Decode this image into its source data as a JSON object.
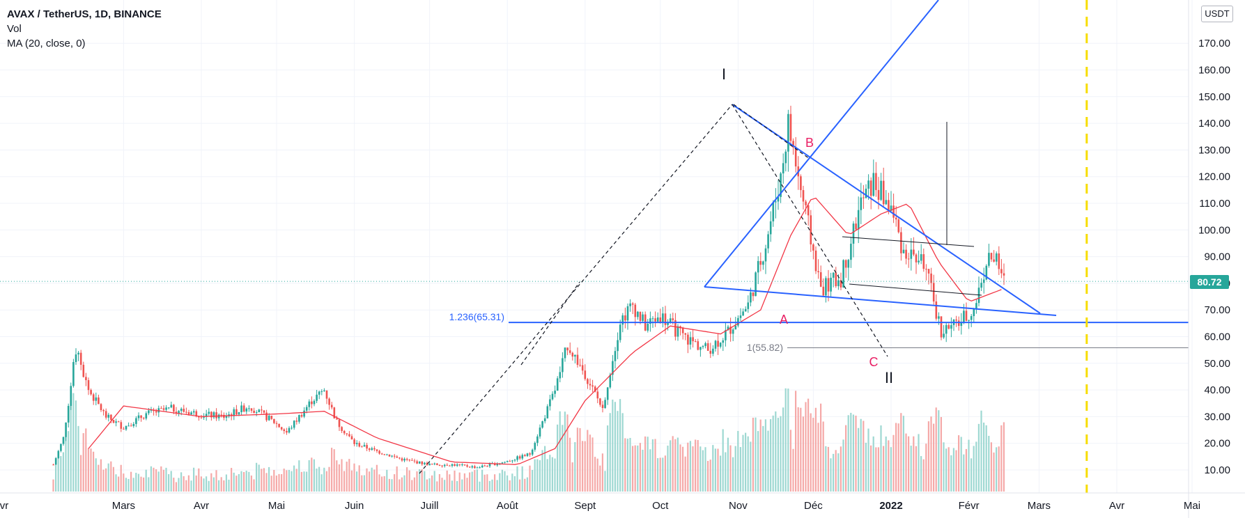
{
  "legend": {
    "title": "AVAX / TetherUS, 1D, BINANCE",
    "vol": "Vol",
    "ma": "MA (20, close, 0)"
  },
  "currency_badge": "USDT",
  "last_price": "80.72",
  "colors": {
    "up": "#26a69a",
    "down": "#ef5350",
    "ma": "#f23645",
    "trend": "#2962ff",
    "marker": "#f7dd00",
    "fib": "#787b86"
  },
  "annotations": {
    "wave_I": "I",
    "wave_II": "II",
    "wave_A": "A",
    "wave_B": "B",
    "wave_C": "C",
    "fib_upper": "1.236(65.31)",
    "fib_lower": "1(55.82)"
  },
  "chart_data": {
    "type": "candlestick",
    "title": "AVAX / TetherUS, 1D, BINANCE",
    "y_axis": {
      "min": 0,
      "max": 180,
      "ticks": [
        "10.00",
        "20.00",
        "30.00",
        "40.00",
        "50.00",
        "60.00",
        "70.00",
        "80.00",
        "90.00",
        "100.00",
        "110.00",
        "120.00",
        "130.00",
        "140.00",
        "150.00",
        "160.00",
        "170.00"
      ]
    },
    "x_axis": {
      "ticks": [
        "vr",
        "Mars",
        "Avr",
        "Mai",
        "Juin",
        "Juill",
        "Août",
        "Sept",
        "Oct",
        "Nov",
        "Déc",
        "2022",
        "Févr",
        "Mars",
        "Avr",
        "Mai"
      ]
    },
    "close_path": [
      [
        "2021-02-01",
        12
      ],
      [
        "2021-02-05",
        22
      ],
      [
        "2021-02-10",
        55
      ],
      [
        "2021-02-15",
        40
      ],
      [
        "2021-02-22",
        30
      ],
      [
        "2021-03-01",
        26
      ],
      [
        "2021-03-10",
        31
      ],
      [
        "2021-03-20",
        33
      ],
      [
        "2021-03-31",
        31
      ],
      [
        "2021-04-10",
        30
      ],
      [
        "2021-04-20",
        34
      ],
      [
        "2021-04-30",
        28
      ],
      [
        "2021-05-05",
        24
      ],
      [
        "2021-05-15",
        36
      ],
      [
        "2021-05-20",
        40
      ],
      [
        "2021-05-25",
        28
      ],
      [
        "2021-06-01",
        20
      ],
      [
        "2021-06-10",
        17
      ],
      [
        "2021-06-20",
        14
      ],
      [
        "2021-07-01",
        12
      ],
      [
        "2021-07-10",
        12
      ],
      [
        "2021-07-20",
        11
      ],
      [
        "2021-07-31",
        13
      ],
      [
        "2021-08-10",
        16
      ],
      [
        "2021-08-20",
        40
      ],
      [
        "2021-08-25",
        57
      ],
      [
        "2021-09-01",
        46
      ],
      [
        "2021-09-08",
        33
      ],
      [
        "2021-09-15",
        66
      ],
      [
        "2021-09-20",
        72
      ],
      [
        "2021-09-25",
        64
      ],
      [
        "2021-10-01",
        68
      ],
      [
        "2021-10-10",
        60
      ],
      [
        "2021-10-20",
        55
      ],
      [
        "2021-10-28",
        62
      ],
      [
        "2021-11-05",
        72
      ],
      [
        "2021-11-12",
        95
      ],
      [
        "2021-11-18",
        120
      ],
      [
        "2021-11-21",
        140
      ],
      [
        "2021-11-26",
        115
      ],
      [
        "2021-12-04",
        78
      ],
      [
        "2021-12-12",
        82
      ],
      [
        "2021-12-20",
        110
      ],
      [
        "2021-12-25",
        118
      ],
      [
        "2022-01-01",
        108
      ],
      [
        "2022-01-06",
        92
      ],
      [
        "2022-01-14",
        88
      ],
      [
        "2022-01-21",
        62
      ],
      [
        "2022-01-26",
        64
      ],
      [
        "2022-02-03",
        70
      ],
      [
        "2022-02-08",
        88
      ],
      [
        "2022-02-11",
        90
      ],
      [
        "2022-02-15",
        80.72
      ]
    ],
    "ma20_path": [
      [
        "2021-02-15",
        18
      ],
      [
        "2021-03-01",
        34
      ],
      [
        "2021-04-01",
        30
      ],
      [
        "2021-05-01",
        31
      ],
      [
        "2021-05-20",
        32
      ],
      [
        "2021-06-10",
        22
      ],
      [
        "2021-07-10",
        13
      ],
      [
        "2021-08-05",
        12
      ],
      [
        "2021-08-20",
        18
      ],
      [
        "2021-09-01",
        36
      ],
      [
        "2021-09-20",
        54
      ],
      [
        "2021-10-05",
        64
      ],
      [
        "2021-10-25",
        61
      ],
      [
        "2021-11-10",
        70
      ],
      [
        "2021-11-22",
        98
      ],
      [
        "2021-12-01",
        113
      ],
      [
        "2021-12-15",
        98
      ],
      [
        "2021-12-28",
        106
      ],
      [
        "2022-01-08",
        110
      ],
      [
        "2022-01-20",
        88
      ],
      [
        "2022-02-01",
        73
      ],
      [
        "2022-02-15",
        78
      ]
    ],
    "horizontal_levels": [
      {
        "label": "1.236(65.31)",
        "value": 65.31
      },
      {
        "label": "1(55.82)",
        "value": 55.82
      }
    ],
    "current_price": 80.72,
    "vertical_marker": "2022-03-20"
  }
}
